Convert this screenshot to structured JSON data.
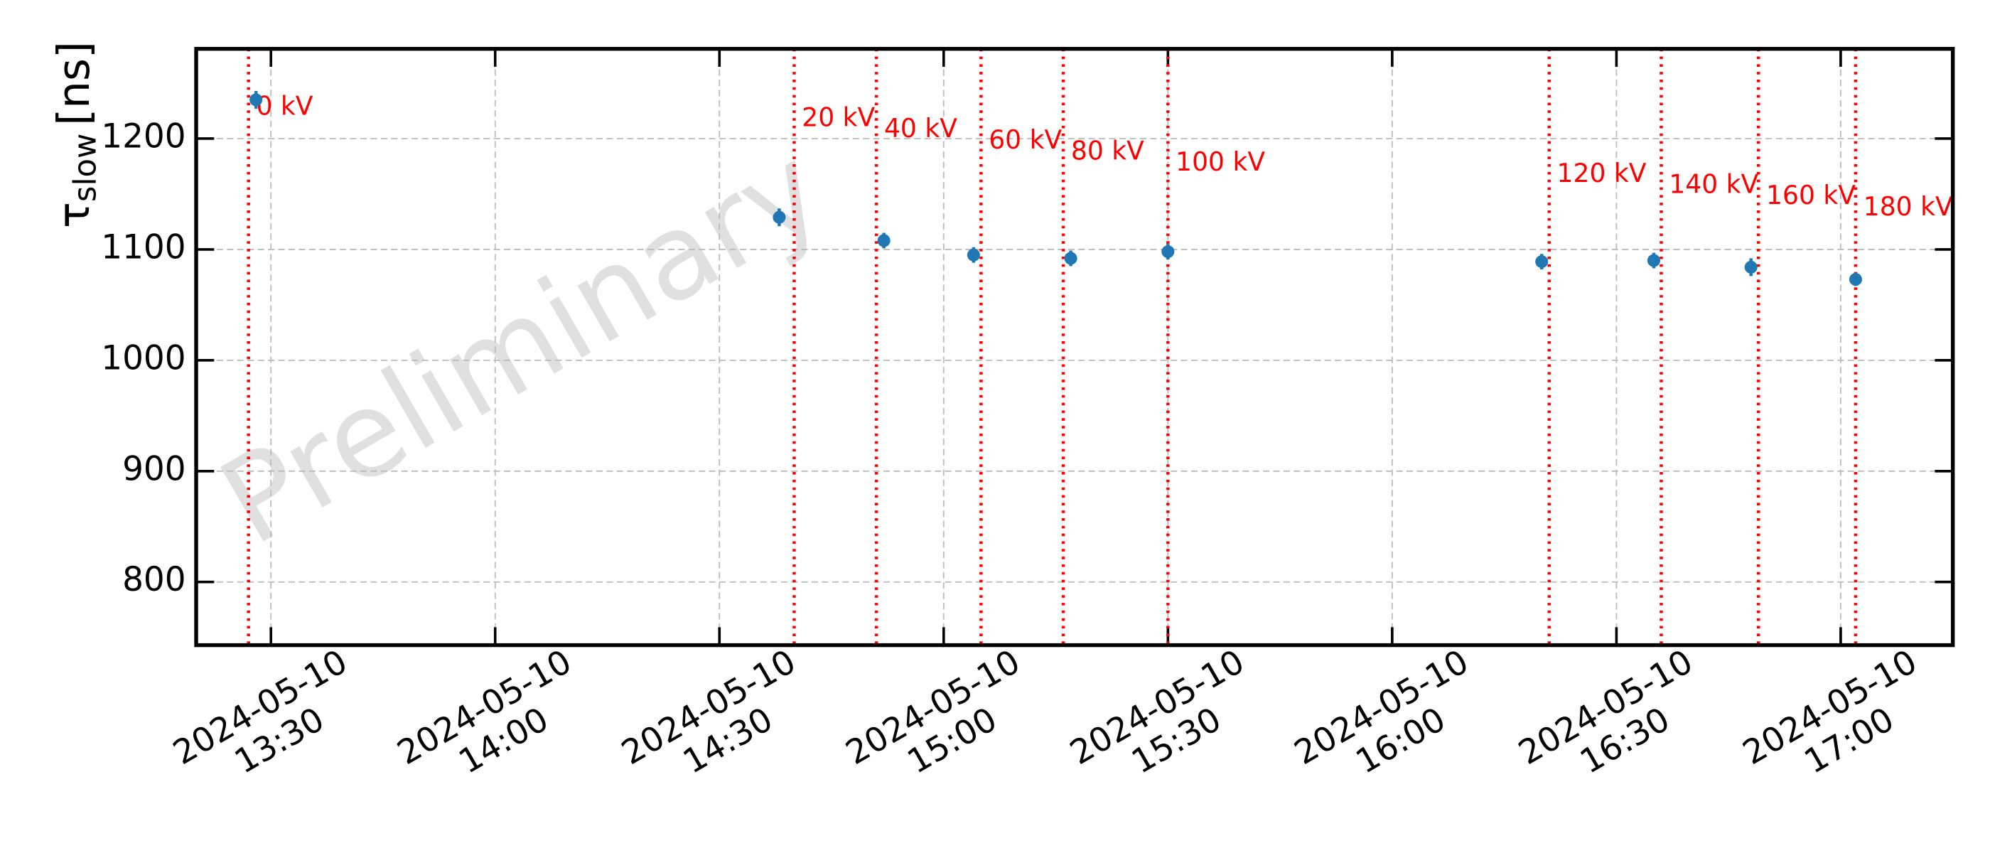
{
  "chart_data": {
    "type": "errorbar",
    "ylabel": {
      "symbol": "τ",
      "subscript": "slow",
      "unit": "[ns]"
    },
    "watermark": "Preliminary",
    "x": [
      "2024-05-10 13:28",
      "2024-05-10 14:38",
      "2024-05-10 14:52",
      "2024-05-10 15:04",
      "2024-05-10 15:17",
      "2024-05-10 15:30",
      "2024-05-10 16:20",
      "2024-05-10 16:35",
      "2024-05-10 16:48",
      "2024-05-10 17:02"
    ],
    "values": [
      1235,
      1129,
      1108,
      1095,
      1092,
      1098,
      1089,
      1090,
      1084,
      1073
    ],
    "errors": [
      8,
      8,
      7,
      7,
      7,
      7,
      7,
      7,
      8,
      6
    ],
    "color": "#1f77b4",
    "vlines": [
      {
        "x": "2024-05-10 13:27",
        "label": "0 kV"
      },
      {
        "x": "2024-05-10 14:40",
        "label": "20 kV"
      },
      {
        "x": "2024-05-10 14:51",
        "label": "40 kV"
      },
      {
        "x": "2024-05-10 15:05",
        "label": "60 kV"
      },
      {
        "x": "2024-05-10 15:16",
        "label": "80 kV"
      },
      {
        "x": "2024-05-10 15:30",
        "label": "100 kV"
      },
      {
        "x": "2024-05-10 16:21",
        "label": "120 kV"
      },
      {
        "x": "2024-05-10 16:36",
        "label": "140 kV"
      },
      {
        "x": "2024-05-10 16:49",
        "label": "160 kV"
      },
      {
        "x": "2024-05-10 17:02",
        "label": "180 kV"
      }
    ],
    "vline_color": "#ff0000",
    "xlim": [
      "2024-05-10 13:20",
      "2024-05-10 17:15"
    ],
    "xticks": [
      {
        "value": "2024-05-10 13:30",
        "label": [
          "2024-05-10",
          "13:30"
        ]
      },
      {
        "value": "2024-05-10 14:00",
        "label": [
          "2024-05-10",
          "14:00"
        ]
      },
      {
        "value": "2024-05-10 14:30",
        "label": [
          "2024-05-10",
          "14:30"
        ]
      },
      {
        "value": "2024-05-10 15:00",
        "label": [
          "2024-05-10",
          "15:00"
        ]
      },
      {
        "value": "2024-05-10 15:30",
        "label": [
          "2024-05-10",
          "15:30"
        ]
      },
      {
        "value": "2024-05-10 16:00",
        "label": [
          "2024-05-10",
          "16:00"
        ]
      },
      {
        "value": "2024-05-10 16:30",
        "label": [
          "2024-05-10",
          "16:30"
        ]
      },
      {
        "value": "2024-05-10 17:00",
        "label": [
          "2024-05-10",
          "17:00"
        ]
      }
    ],
    "ylim": [
      743,
      1281
    ],
    "yticks": [
      800,
      900,
      1000,
      1100,
      1200
    ],
    "grid": true
  }
}
